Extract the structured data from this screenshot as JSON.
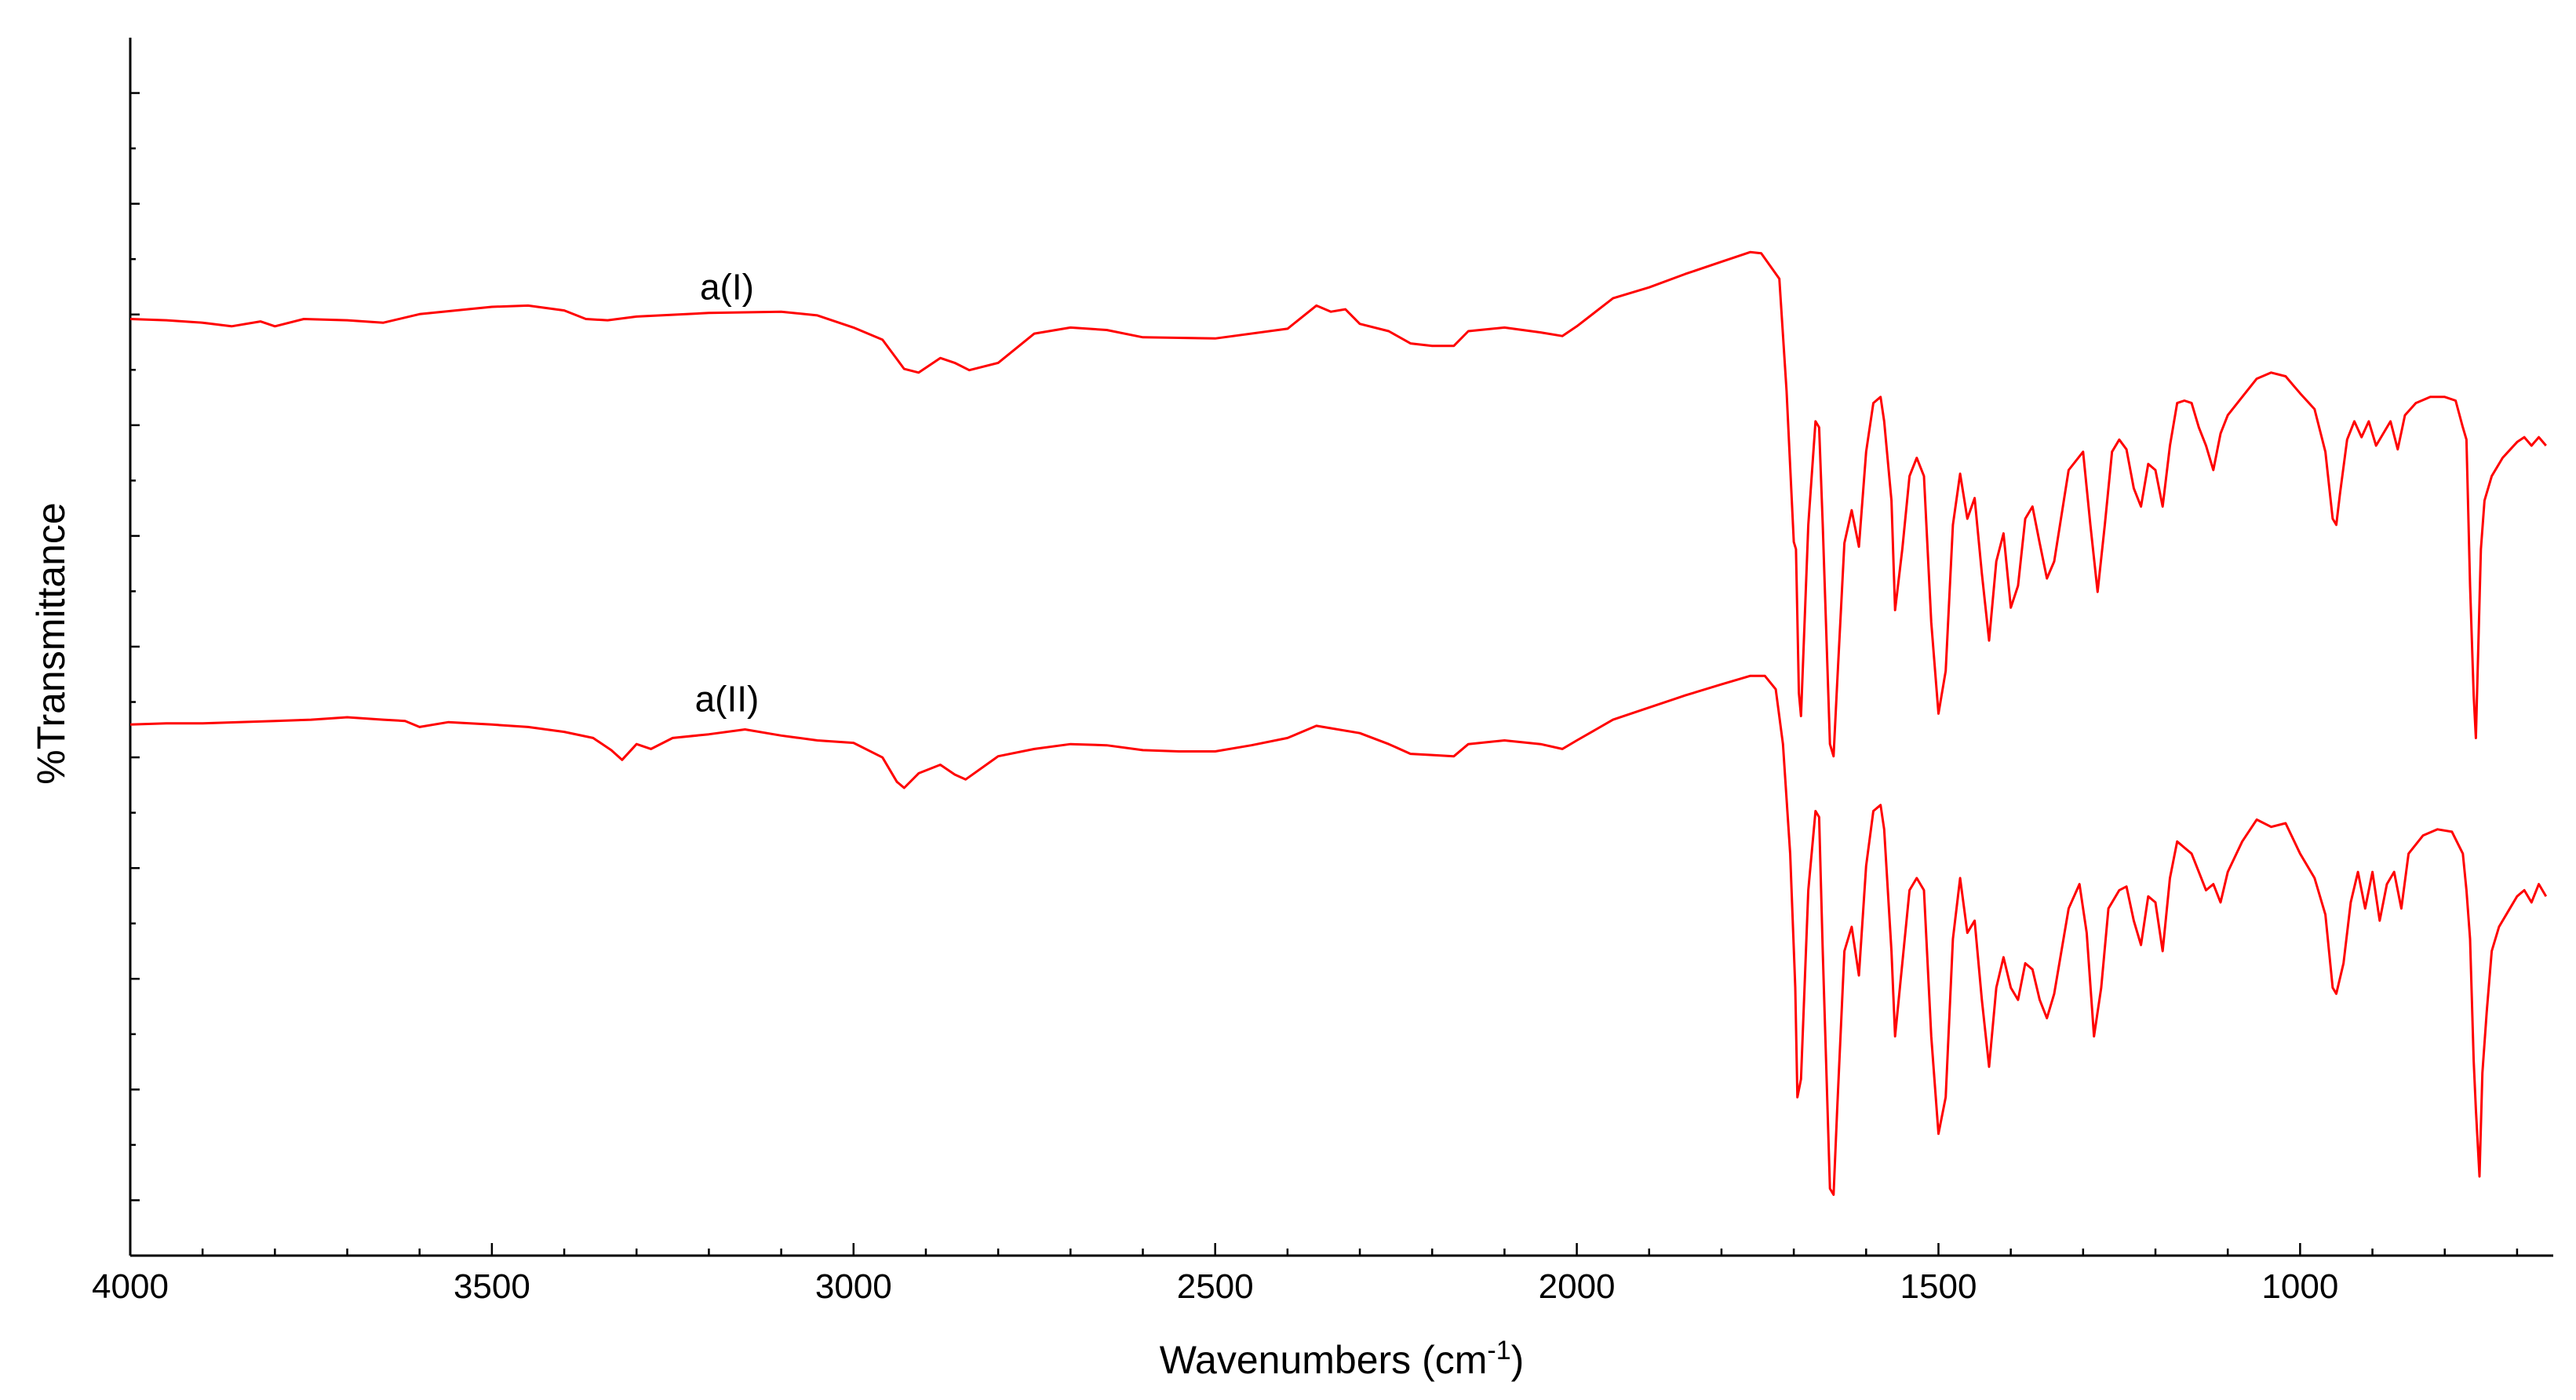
{
  "chart_data": {
    "type": "line",
    "title": "",
    "xlabel": "Wavenumbers (cm",
    "xlabel_sup": "-1",
    "xlabel_suffix": ")",
    "ylabel": "%Transmittance",
    "xlim": [
      4000,
      650
    ],
    "x_reversed": true,
    "y_units": "arbitrary (stacked %Transmittance, relative scale 0-100, no tick labels)",
    "ylim": [
      0,
      100
    ],
    "xticks": [
      4000,
      3500,
      3000,
      2500,
      2000,
      1500,
      1000
    ],
    "x_minor_step": 100,
    "y_tick_count": 11,
    "grid": false,
    "legend": "none",
    "line_color": "#ff0000",
    "series": [
      {
        "name": "a(I)",
        "label_at": {
          "x": 3175,
          "y": 78.5
        },
        "points": [
          [
            4000,
            76.9
          ],
          [
            3950,
            76.8
          ],
          [
            3900,
            76.6
          ],
          [
            3860,
            76.3
          ],
          [
            3820,
            76.7
          ],
          [
            3800,
            76.3
          ],
          [
            3760,
            76.9
          ],
          [
            3700,
            76.8
          ],
          [
            3650,
            76.6
          ],
          [
            3600,
            77.3
          ],
          [
            3550,
            77.6
          ],
          [
            3500,
            77.9
          ],
          [
            3450,
            78.0
          ],
          [
            3400,
            77.6
          ],
          [
            3370,
            76.9
          ],
          [
            3340,
            76.8
          ],
          [
            3300,
            77.1
          ],
          [
            3200,
            77.4
          ],
          [
            3100,
            77.5
          ],
          [
            3050,
            77.2
          ],
          [
            3000,
            76.2
          ],
          [
            2960,
            75.2
          ],
          [
            2930,
            72.8
          ],
          [
            2910,
            72.5
          ],
          [
            2880,
            73.7
          ],
          [
            2860,
            73.3
          ],
          [
            2840,
            72.7
          ],
          [
            2800,
            73.3
          ],
          [
            2750,
            75.7
          ],
          [
            2700,
            76.2
          ],
          [
            2650,
            76.0
          ],
          [
            2600,
            75.4
          ],
          [
            2500,
            75.3
          ],
          [
            2400,
            76.1
          ],
          [
            2360,
            78.0
          ],
          [
            2340,
            77.5
          ],
          [
            2320,
            77.7
          ],
          [
            2300,
            76.5
          ],
          [
            2260,
            75.9
          ],
          [
            2230,
            74.9
          ],
          [
            2200,
            74.7
          ],
          [
            2170,
            74.7
          ],
          [
            2150,
            75.9
          ],
          [
            2100,
            76.2
          ],
          [
            2050,
            75.8
          ],
          [
            2020,
            75.5
          ],
          [
            2000,
            76.3
          ],
          [
            1950,
            78.6
          ],
          [
            1900,
            79.5
          ],
          [
            1850,
            80.6
          ],
          [
            1800,
            81.6
          ],
          [
            1760,
            82.4
          ],
          [
            1745,
            82.3
          ],
          [
            1720,
            80.2
          ],
          [
            1710,
            71.0
          ],
          [
            1700,
            58.6
          ],
          [
            1697,
            58.0
          ],
          [
            1693,
            46.2
          ],
          [
            1690,
            44.3
          ],
          [
            1680,
            60.0
          ],
          [
            1670,
            68.5
          ],
          [
            1665,
            68.0
          ],
          [
            1660,
            60.0
          ],
          [
            1650,
            42.0
          ],
          [
            1645,
            41.0
          ],
          [
            1640,
            47.0
          ],
          [
            1630,
            58.5
          ],
          [
            1620,
            61.2
          ],
          [
            1610,
            58.2
          ],
          [
            1600,
            66.0
          ],
          [
            1590,
            70.0
          ],
          [
            1580,
            70.5
          ],
          [
            1575,
            68.5
          ],
          [
            1565,
            62.0
          ],
          [
            1560,
            53.0
          ],
          [
            1550,
            58.0
          ],
          [
            1540,
            64.0
          ],
          [
            1530,
            65.5
          ],
          [
            1520,
            64.0
          ],
          [
            1510,
            52.0
          ],
          [
            1500,
            44.5
          ],
          [
            1490,
            48.0
          ],
          [
            1480,
            60.0
          ],
          [
            1470,
            64.2
          ],
          [
            1460,
            60.5
          ],
          [
            1450,
            62.2
          ],
          [
            1440,
            56.0
          ],
          [
            1430,
            50.5
          ],
          [
            1420,
            57.0
          ],
          [
            1410,
            59.3
          ],
          [
            1400,
            53.2
          ],
          [
            1390,
            55.0
          ],
          [
            1380,
            60.5
          ],
          [
            1370,
            61.5
          ],
          [
            1360,
            58.5
          ],
          [
            1350,
            55.6
          ],
          [
            1340,
            57.0
          ],
          [
            1320,
            64.5
          ],
          [
            1300,
            66.0
          ],
          [
            1290,
            60.0
          ],
          [
            1280,
            54.5
          ],
          [
            1270,
            60.0
          ],
          [
            1260,
            66.0
          ],
          [
            1250,
            67.0
          ],
          [
            1240,
            66.2
          ],
          [
            1230,
            63.0
          ],
          [
            1220,
            61.5
          ],
          [
            1210,
            65.0
          ],
          [
            1200,
            64.5
          ],
          [
            1190,
            61.5
          ],
          [
            1180,
            66.5
          ],
          [
            1170,
            70.0
          ],
          [
            1160,
            70.2
          ],
          [
            1150,
            70.0
          ],
          [
            1140,
            68.0
          ],
          [
            1130,
            66.5
          ],
          [
            1120,
            64.5
          ],
          [
            1110,
            67.5
          ],
          [
            1100,
            69.0
          ],
          [
            1080,
            70.5
          ],
          [
            1060,
            72.0
          ],
          [
            1040,
            72.5
          ],
          [
            1020,
            72.2
          ],
          [
            1000,
            70.8
          ],
          [
            980,
            69.5
          ],
          [
            965,
            66.0
          ],
          [
            955,
            60.5
          ],
          [
            950,
            60.0
          ],
          [
            945,
            62.5
          ],
          [
            935,
            67.0
          ],
          [
            925,
            68.5
          ],
          [
            915,
            67.2
          ],
          [
            905,
            68.5
          ],
          [
            895,
            66.5
          ],
          [
            885,
            67.5
          ],
          [
            875,
            68.5
          ],
          [
            865,
            66.2
          ],
          [
            855,
            69.0
          ],
          [
            840,
            70.0
          ],
          [
            820,
            70.5
          ],
          [
            800,
            70.5
          ],
          [
            785,
            70.2
          ],
          [
            775,
            68.0
          ],
          [
            770,
            67.0
          ],
          [
            765,
            55.0
          ],
          [
            760,
            46.0
          ],
          [
            757,
            42.5
          ],
          [
            750,
            58.0
          ],
          [
            745,
            62.0
          ],
          [
            735,
            64.0
          ],
          [
            720,
            65.5
          ],
          [
            700,
            66.8
          ],
          [
            690,
            67.2
          ],
          [
            680,
            66.5
          ],
          [
            670,
            67.2
          ],
          [
            660,
            66.5
          ]
        ]
      },
      {
        "name": "a(II)",
        "label_at": {
          "x": 3175,
          "y": 44.7
        },
        "points": [
          [
            4000,
            43.6
          ],
          [
            3950,
            43.7
          ],
          [
            3900,
            43.7
          ],
          [
            3850,
            43.8
          ],
          [
            3800,
            43.9
          ],
          [
            3750,
            44.0
          ],
          [
            3700,
            44.2
          ],
          [
            3650,
            44.0
          ],
          [
            3620,
            43.9
          ],
          [
            3600,
            43.4
          ],
          [
            3560,
            43.8
          ],
          [
            3500,
            43.6
          ],
          [
            3450,
            43.4
          ],
          [
            3400,
            43.0
          ],
          [
            3360,
            42.5
          ],
          [
            3335,
            41.5
          ],
          [
            3320,
            40.7
          ],
          [
            3300,
            42.0
          ],
          [
            3280,
            41.6
          ],
          [
            3250,
            42.5
          ],
          [
            3200,
            42.8
          ],
          [
            3150,
            43.2
          ],
          [
            3100,
            42.7
          ],
          [
            3050,
            42.3
          ],
          [
            3000,
            42.1
          ],
          [
            2960,
            40.9
          ],
          [
            2940,
            38.9
          ],
          [
            2930,
            38.4
          ],
          [
            2910,
            39.6
          ],
          [
            2880,
            40.3
          ],
          [
            2860,
            39.5
          ],
          [
            2845,
            39.1
          ],
          [
            2800,
            41.0
          ],
          [
            2750,
            41.6
          ],
          [
            2700,
            42.0
          ],
          [
            2650,
            41.9
          ],
          [
            2600,
            41.5
          ],
          [
            2550,
            41.4
          ],
          [
            2500,
            41.4
          ],
          [
            2450,
            41.9
          ],
          [
            2400,
            42.5
          ],
          [
            2360,
            43.5
          ],
          [
            2340,
            43.3
          ],
          [
            2300,
            42.9
          ],
          [
            2260,
            42.0
          ],
          [
            2230,
            41.2
          ],
          [
            2200,
            41.1
          ],
          [
            2170,
            41.0
          ],
          [
            2150,
            42.0
          ],
          [
            2100,
            42.3
          ],
          [
            2050,
            42.0
          ],
          [
            2020,
            41.6
          ],
          [
            2000,
            42.3
          ],
          [
            1950,
            44.0
          ],
          [
            1900,
            45.0
          ],
          [
            1850,
            46.0
          ],
          [
            1800,
            46.9
          ],
          [
            1760,
            47.6
          ],
          [
            1740,
            47.6
          ],
          [
            1725,
            46.5
          ],
          [
            1715,
            42.0
          ],
          [
            1705,
            33.0
          ],
          [
            1698,
            22.0
          ],
          [
            1695,
            13.0
          ],
          [
            1690,
            14.5
          ],
          [
            1680,
            30.0
          ],
          [
            1670,
            36.5
          ],
          [
            1665,
            36.0
          ],
          [
            1660,
            25.0
          ],
          [
            1650,
            5.5
          ],
          [
            1645,
            5.0
          ],
          [
            1640,
            12.0
          ],
          [
            1630,
            25.0
          ],
          [
            1620,
            27.0
          ],
          [
            1610,
            23.0
          ],
          [
            1600,
            32.0
          ],
          [
            1590,
            36.5
          ],
          [
            1580,
            37.0
          ],
          [
            1575,
            35.0
          ],
          [
            1565,
            25.0
          ],
          [
            1560,
            18.0
          ],
          [
            1550,
            24.0
          ],
          [
            1540,
            30.0
          ],
          [
            1530,
            31.0
          ],
          [
            1520,
            30.0
          ],
          [
            1510,
            18.0
          ],
          [
            1500,
            10.0
          ],
          [
            1490,
            13.0
          ],
          [
            1480,
            26.0
          ],
          [
            1470,
            31.0
          ],
          [
            1460,
            26.5
          ],
          [
            1450,
            27.5
          ],
          [
            1440,
            21.0
          ],
          [
            1430,
            15.5
          ],
          [
            1420,
            22.0
          ],
          [
            1410,
            24.5
          ],
          [
            1400,
            22.0
          ],
          [
            1390,
            21.0
          ],
          [
            1380,
            24.0
          ],
          [
            1370,
            23.5
          ],
          [
            1360,
            21.0
          ],
          [
            1350,
            19.5
          ],
          [
            1340,
            21.5
          ],
          [
            1320,
            28.5
          ],
          [
            1305,
            30.5
          ],
          [
            1295,
            26.5
          ],
          [
            1285,
            18.0
          ],
          [
            1275,
            22.0
          ],
          [
            1265,
            28.5
          ],
          [
            1250,
            30.0
          ],
          [
            1240,
            30.3
          ],
          [
            1230,
            27.5
          ],
          [
            1220,
            25.5
          ],
          [
            1210,
            29.5
          ],
          [
            1200,
            29.0
          ],
          [
            1190,
            25.0
          ],
          [
            1180,
            31.0
          ],
          [
            1170,
            34.0
          ],
          [
            1160,
            33.5
          ],
          [
            1150,
            33.0
          ],
          [
            1140,
            31.5
          ],
          [
            1130,
            30.0
          ],
          [
            1120,
            30.5
          ],
          [
            1110,
            29.0
          ],
          [
            1100,
            31.5
          ],
          [
            1080,
            34.0
          ],
          [
            1060,
            35.8
          ],
          [
            1040,
            35.2
          ],
          [
            1020,
            35.5
          ],
          [
            1000,
            33.0
          ],
          [
            980,
            31.0
          ],
          [
            965,
            28.0
          ],
          [
            955,
            22.0
          ],
          [
            950,
            21.5
          ],
          [
            940,
            24.0
          ],
          [
            930,
            29.0
          ],
          [
            920,
            31.5
          ],
          [
            910,
            28.5
          ],
          [
            900,
            31.5
          ],
          [
            890,
            27.5
          ],
          [
            880,
            30.5
          ],
          [
            870,
            31.5
          ],
          [
            860,
            28.5
          ],
          [
            850,
            33.0
          ],
          [
            830,
            34.5
          ],
          [
            810,
            35.0
          ],
          [
            790,
            34.8
          ],
          [
            775,
            33.0
          ],
          [
            770,
            30.0
          ],
          [
            765,
            26.0
          ],
          [
            760,
            16.0
          ],
          [
            757,
            12.0
          ],
          [
            752,
            6.5
          ],
          [
            748,
            15.0
          ],
          [
            742,
            20.0
          ],
          [
            735,
            25.0
          ],
          [
            725,
            27.0
          ],
          [
            710,
            28.5
          ],
          [
            700,
            29.5
          ],
          [
            690,
            30.0
          ],
          [
            680,
            29.0
          ],
          [
            670,
            30.5
          ],
          [
            660,
            29.5
          ]
        ]
      }
    ]
  }
}
